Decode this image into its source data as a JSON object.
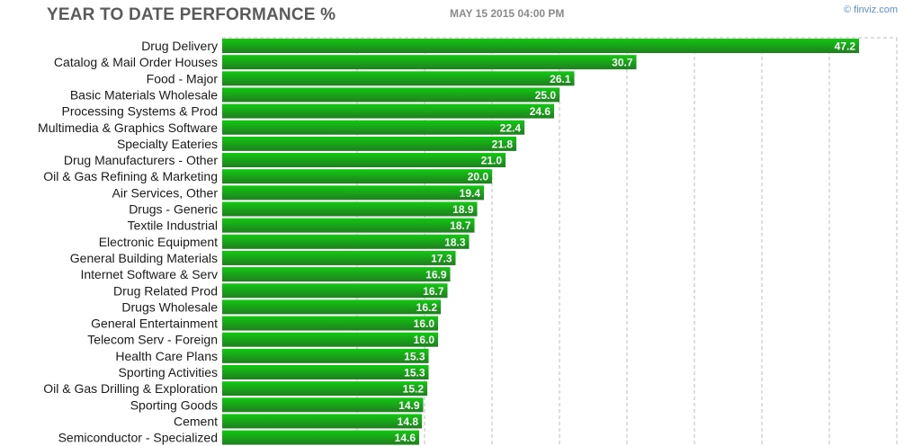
{
  "header": {
    "title": "YEAR TO DATE PERFORMANCE %",
    "timestamp": "MAY 15 2015 04:00 PM",
    "brand": "© finviz.com"
  },
  "colors": {
    "bar_top": "#12c812",
    "bar_bottom": "#1f7f1f",
    "grid": "#bdbdbd",
    "label": "#1a1a1a",
    "value_text": "#ffffff"
  },
  "chart_data": {
    "type": "bar",
    "orientation": "horizontal",
    "title": "YEAR TO DATE PERFORMANCE %",
    "xlabel": "",
    "ylabel": "",
    "xlim": [
      0,
      50
    ],
    "grid": true,
    "categories": [
      "Drug Delivery",
      "Catalog & Mail Order Houses",
      "Food - Major",
      "Basic Materials Wholesale",
      "Processing Systems & Prod",
      "Multimedia & Graphics Software",
      "Specialty Eateries",
      "Drug Manufacturers - Other",
      "Oil & Gas Refining & Marketing",
      "Air Services, Other",
      "Drugs - Generic",
      "Textile Industrial",
      "Electronic Equipment",
      "General Building Materials",
      "Internet Software & Serv",
      "Drug Related Prod",
      "Drugs Wholesale",
      "General Entertainment",
      "Telecom Serv - Foreign",
      "Health Care Plans",
      "Sporting Activities",
      "Oil & Gas Drilling & Exploration",
      "Sporting Goods",
      "Cement",
      "Semiconductor - Specialized"
    ],
    "values": [
      47.2,
      30.7,
      26.1,
      25.0,
      24.6,
      22.4,
      21.8,
      21.0,
      20.0,
      19.4,
      18.9,
      18.7,
      18.3,
      17.3,
      16.9,
      16.7,
      16.2,
      16.0,
      16.0,
      15.3,
      15.3,
      15.2,
      14.9,
      14.8,
      14.6
    ],
    "value_labels": [
      "47.2",
      "30.7",
      "26.1",
      "25.0",
      "24.6",
      "22.4",
      "21.8",
      "21.0",
      "20.0",
      "19.4",
      "18.9",
      "18.7",
      "18.3",
      "17.3",
      "16.9",
      "16.7",
      "16.2",
      "16.0",
      "16.0",
      "15.3",
      "15.3",
      "15.2",
      "14.9",
      "14.8",
      "14.6"
    ]
  }
}
